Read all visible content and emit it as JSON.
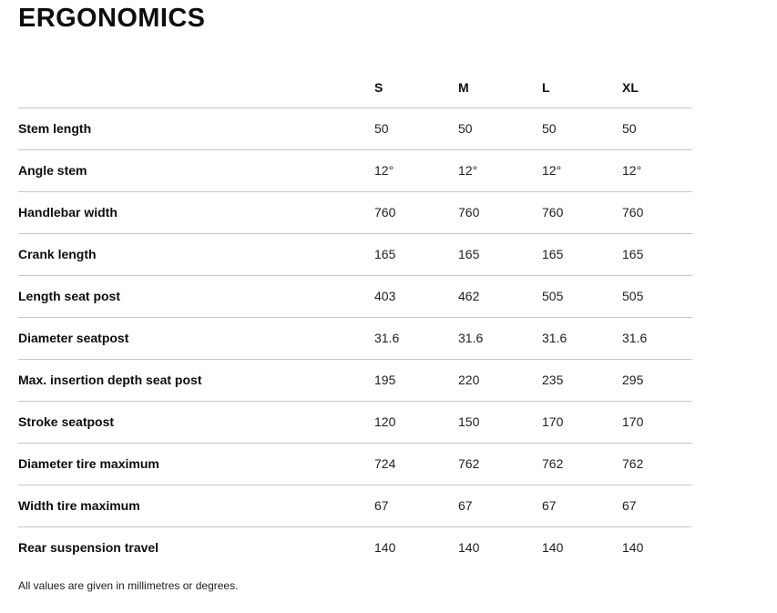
{
  "page": {
    "title": "ERGONOMICS",
    "footnote": "All values are given in millimetres or degrees."
  },
  "table": {
    "columns": [
      "S",
      "M",
      "L",
      "XL"
    ],
    "rows": [
      {
        "label": "Stem length",
        "values": [
          "50",
          "50",
          "50",
          "50"
        ]
      },
      {
        "label": "Angle stem",
        "values": [
          "12°",
          "12°",
          "12°",
          "12°"
        ]
      },
      {
        "label": "Handlebar width",
        "values": [
          "760",
          "760",
          "760",
          "760"
        ]
      },
      {
        "label": "Crank length",
        "values": [
          "165",
          "165",
          "165",
          "165"
        ]
      },
      {
        "label": "Length seat post",
        "values": [
          "403",
          "462",
          "505",
          "505"
        ]
      },
      {
        "label": "Diameter seatpost",
        "values": [
          "31.6",
          "31.6",
          "31.6",
          "31.6"
        ]
      },
      {
        "label": "Max. insertion depth seat post",
        "values": [
          "195",
          "220",
          "235",
          "295"
        ]
      },
      {
        "label": "Stroke seatpost",
        "values": [
          "120",
          "150",
          "170",
          "170"
        ]
      },
      {
        "label": "Diameter tire maximum",
        "values": [
          "724",
          "762",
          "762",
          "762"
        ]
      },
      {
        "label": "Width tire maximum",
        "values": [
          "67",
          "67",
          "67",
          "67"
        ]
      },
      {
        "label": "Rear suspension travel",
        "values": [
          "140",
          "140",
          "140",
          "140"
        ]
      }
    ]
  },
  "colors": {
    "separator_line": "#c8c8c8",
    "label_text": "#0d0d0d",
    "value_text": "#212121",
    "background": "#ffffff"
  }
}
